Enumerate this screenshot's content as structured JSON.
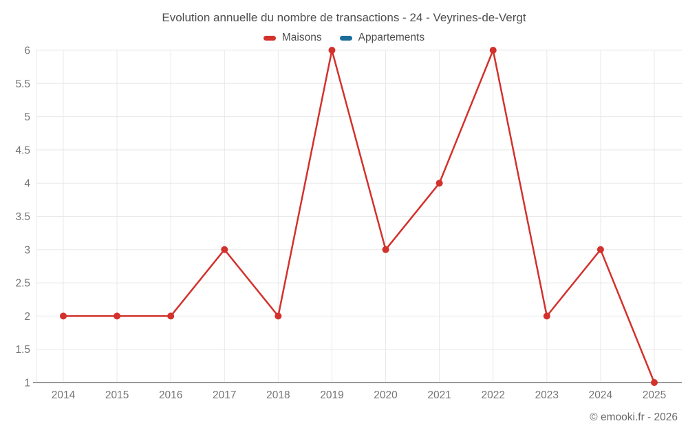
{
  "chart": {
    "title": "Evolution annuelle du nombre de transactions - 24 - Veyrines-de-Vergt",
    "watermark": "© emooki.fr - 2026"
  },
  "chart_data": {
    "type": "line",
    "title": "Evolution annuelle du nombre de transactions - 24 - Veyrines-de-Vergt",
    "categories": [
      "2014",
      "2015",
      "2016",
      "2017",
      "2018",
      "2019",
      "2020",
      "2021",
      "2022",
      "2023",
      "2024",
      "2025"
    ],
    "series": [
      {
        "name": "Maisons",
        "color": "#d3312c",
        "values": [
          2,
          2,
          2,
          3,
          2,
          6,
          3,
          4,
          6,
          2,
          3,
          1
        ]
      },
      {
        "name": "Appartements",
        "color": "#1a6d9b",
        "values": []
      }
    ],
    "xlabel": "",
    "ylabel": "",
    "ylim": [
      1,
      6
    ],
    "ytick_step": 0.5,
    "grid": true,
    "legend_position": "top",
    "gridline_color": "#e8e8e8",
    "axis_line_color": "#9a9a9a",
    "tick_label_color": "#757575"
  }
}
